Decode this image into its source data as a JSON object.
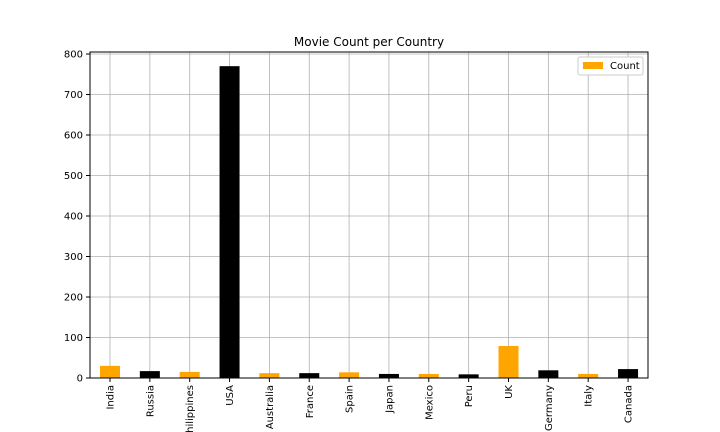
{
  "chart_data": {
    "type": "bar",
    "title": "Movie Count per Country",
    "xlabel": "",
    "ylabel": "",
    "categories": [
      "India",
      "Russia",
      "Philippines",
      "USA",
      "Australia",
      "France",
      "Spain",
      "Japan",
      "Mexico",
      "Peru",
      "UK",
      "Germany",
      "Italy",
      "Canada"
    ],
    "series": [
      {
        "name": "Count",
        "values": [
          30,
          17,
          15,
          770,
          12,
          12,
          14,
          10,
          10,
          9,
          79,
          19,
          10,
          22
        ]
      }
    ],
    "bar_colors": [
      "#ffa500",
      "#000000",
      "#ffa500",
      "#000000",
      "#ffa500",
      "#000000",
      "#ffa500",
      "#000000",
      "#ffa500",
      "#000000",
      "#ffa500",
      "#000000",
      "#ffa500",
      "#000000"
    ],
    "legend_color": "#ffa500",
    "ylim": [
      0,
      805
    ],
    "yticks": [
      0,
      100,
      200,
      300,
      400,
      500,
      600,
      700,
      800
    ],
    "grid": true,
    "legend_position": "top-right"
  }
}
